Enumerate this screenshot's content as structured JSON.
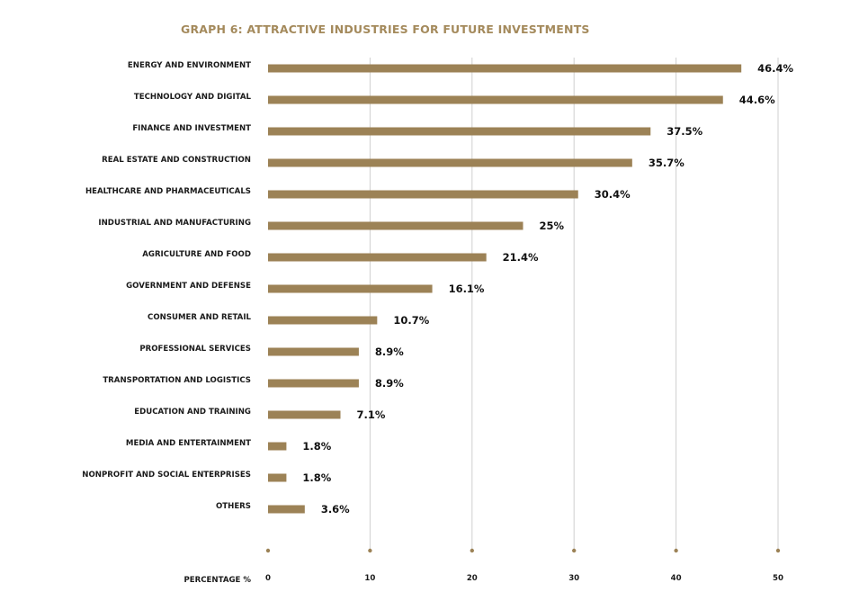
{
  "chart_data": {
    "type": "bar",
    "orientation": "horizontal",
    "title": "GRAPH 6: ATTRACTIVE INDUSTRIES FOR FUTURE INVESTMENTS",
    "categories": [
      "ENERGY AND ENVIRONMENT",
      "TECHNOLOGY AND DIGITAL",
      "FINANCE AND INVESTMENT",
      "REAL ESTATE AND CONSTRUCTION",
      "HEALTHCARE AND PHARMACEUTICALS",
      "INDUSTRIAL AND MANUFACTURING",
      "AGRICULTURE AND FOOD",
      "GOVERNMENT AND DEFENSE",
      "CONSUMER AND RETAIL",
      "PROFESSIONAL SERVICES",
      "TRANSPORTATION AND LOGISTICS",
      "EDUCATION AND TRAINING",
      "MEDIA AND ENTERTAINMENT",
      "NONPROFIT AND SOCIAL ENTERPRISES",
      "OTHERS"
    ],
    "values": [
      46.4,
      44.6,
      37.5,
      35.7,
      30.4,
      25,
      21.4,
      16.1,
      10.7,
      8.9,
      8.9,
      7.1,
      1.8,
      1.8,
      3.6
    ],
    "value_labels": [
      "46.4%",
      "44.6%",
      "37.5%",
      "35.7%",
      "30.4%",
      "25%",
      "21.4%",
      "16.1%",
      "10.7%",
      "8.9%",
      "8.9%",
      "7.1%",
      "1.8%",
      "1.8%",
      "3.6%"
    ],
    "xlabel": "PERCENTAGE %",
    "ylabel": "",
    "xlim": [
      0,
      50
    ],
    "x_ticks": [
      0,
      10,
      20,
      30,
      40,
      50
    ],
    "grid": true,
    "legend": "none"
  },
  "colors": {
    "bar": "#9c8256",
    "title": "#a48a5c",
    "grid": "#cfcfcf",
    "tick_dot": "#9c8256"
  }
}
